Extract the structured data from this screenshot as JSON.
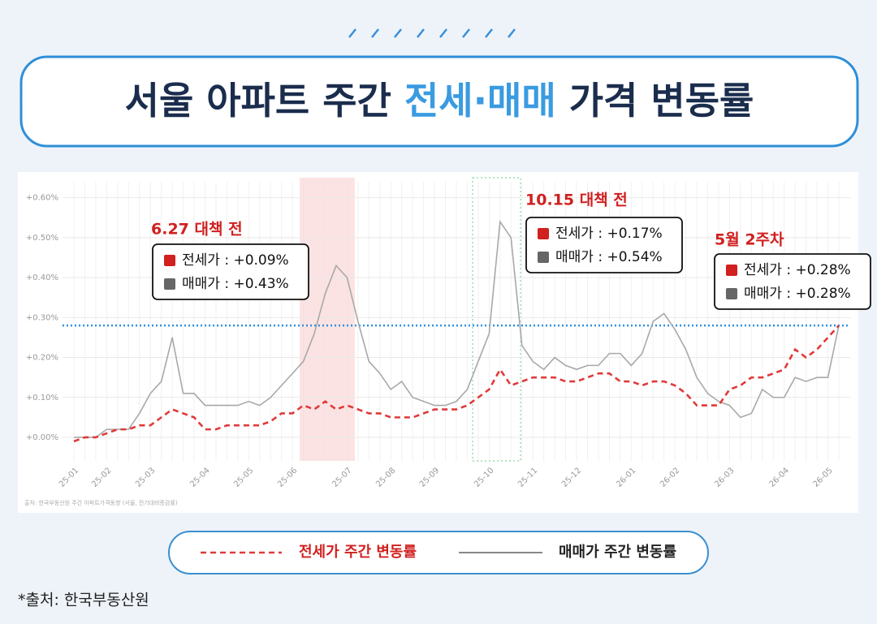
{
  "header": {
    "title_parts": [
      "서울 아파트 주간 ",
      "전세·매매",
      " 가격 변동률"
    ]
  },
  "chart_data": {
    "type": "line",
    "categories": [
      "25-01",
      null,
      null,
      "25-02",
      null,
      null,
      null,
      "25-03",
      null,
      null,
      null,
      null,
      "25-04",
      null,
      null,
      null,
      "25-05",
      null,
      null,
      null,
      "25-06",
      null,
      null,
      null,
      null,
      "25-07",
      null,
      null,
      null,
      "25-08",
      null,
      null,
      null,
      "25-09",
      null,
      null,
      null,
      null,
      "25-10",
      null,
      null,
      null,
      "25-11",
      null,
      null,
      null,
      "25-12",
      null,
      null,
      null,
      null,
      "26-01",
      null,
      null,
      null,
      "26-02",
      null,
      null,
      null,
      null,
      "26-03",
      null,
      null,
      null,
      null,
      "26-04",
      null,
      null,
      null,
      "26-05",
      null
    ],
    "series": [
      {
        "name": "전세가 주간 변동률",
        "color": "#e03a3a",
        "values": [
          -0.01,
          0,
          0,
          0.01,
          0.02,
          0.02,
          0.03,
          0.03,
          0.05,
          0.07,
          0.06,
          0.05,
          0.02,
          0.02,
          0.03,
          0.03,
          0.03,
          0.03,
          0.04,
          0.06,
          0.06,
          0.08,
          0.07,
          0.09,
          0.07,
          0.08,
          0.07,
          0.06,
          0.06,
          0.05,
          0.05,
          0.05,
          0.06,
          0.07,
          0.07,
          0.07,
          0.08,
          0.1,
          0.12,
          0.17,
          0.13,
          0.14,
          0.15,
          0.15,
          0.15,
          0.14,
          0.14,
          0.15,
          0.16,
          0.16,
          0.14,
          0.14,
          0.13,
          0.14,
          0.14,
          0.13,
          0.11,
          0.08,
          0.08,
          0.08,
          0.12,
          0.13,
          0.15,
          0.15,
          0.16,
          0.17,
          0.22,
          0.2,
          0.22,
          0.25,
          0.28
        ]
      },
      {
        "name": "매매가 주간 변동률",
        "color": "#a8a8a8",
        "values": [
          0,
          0,
          0,
          0.02,
          0.02,
          0.02,
          0.06,
          0.11,
          0.14,
          0.25,
          0.11,
          0.11,
          0.08,
          0.08,
          0.08,
          0.08,
          0.09,
          0.08,
          0.1,
          0.13,
          0.16,
          0.19,
          0.26,
          0.36,
          0.43,
          0.4,
          0.29,
          0.19,
          0.16,
          0.12,
          0.14,
          0.1,
          0.09,
          0.08,
          0.08,
          0.09,
          0.12,
          0.19,
          0.26,
          0.54,
          0.5,
          0.23,
          0.19,
          0.17,
          0.2,
          0.18,
          0.17,
          0.18,
          0.18,
          0.21,
          0.21,
          0.18,
          0.21,
          0.29,
          0.31,
          0.27,
          0.22,
          0.15,
          0.11,
          0.09,
          0.08,
          0.05,
          0.06,
          0.12,
          0.1,
          0.1,
          0.15,
          0.14,
          0.15,
          0.15,
          0.28
        ]
      }
    ],
    "ylim": [
      -0.06,
      0.64
    ],
    "yticks": [
      {
        "value": 0,
        "label": "+0.00%"
      },
      {
        "value": 0.1,
        "label": "+0.10%"
      },
      {
        "value": 0.2,
        "label": "+0.20%"
      },
      {
        "value": 0.3,
        "label": "+0.30%"
      },
      {
        "value": 0.4,
        "label": "+0.40%"
      },
      {
        "value": 0.5,
        "label": "+0.50%"
      },
      {
        "value": 0.6,
        "label": "+0.60%"
      }
    ],
    "grid": true,
    "reference_line": {
      "value": 0.28,
      "color": "#2f8fe0"
    },
    "annotations": [
      {
        "title": "6.27 대책 전",
        "items": [
          "전세가 : +0.09%",
          "매매가 : +0.43%"
        ]
      },
      {
        "title": "10.15 대책 전",
        "items": [
          "전세가 : +0.17%",
          "매매가 : +0.54%"
        ]
      },
      {
        "title": "5월 2주차",
        "items": [
          "전세가 : +0.28%",
          "매매가 : +0.28%"
        ]
      }
    ],
    "source": "출처: 한국부동산원 주간 아파트가격동향 (서울, 전기대비증감률)"
  },
  "footer": "*출처: 한국부동산원"
}
